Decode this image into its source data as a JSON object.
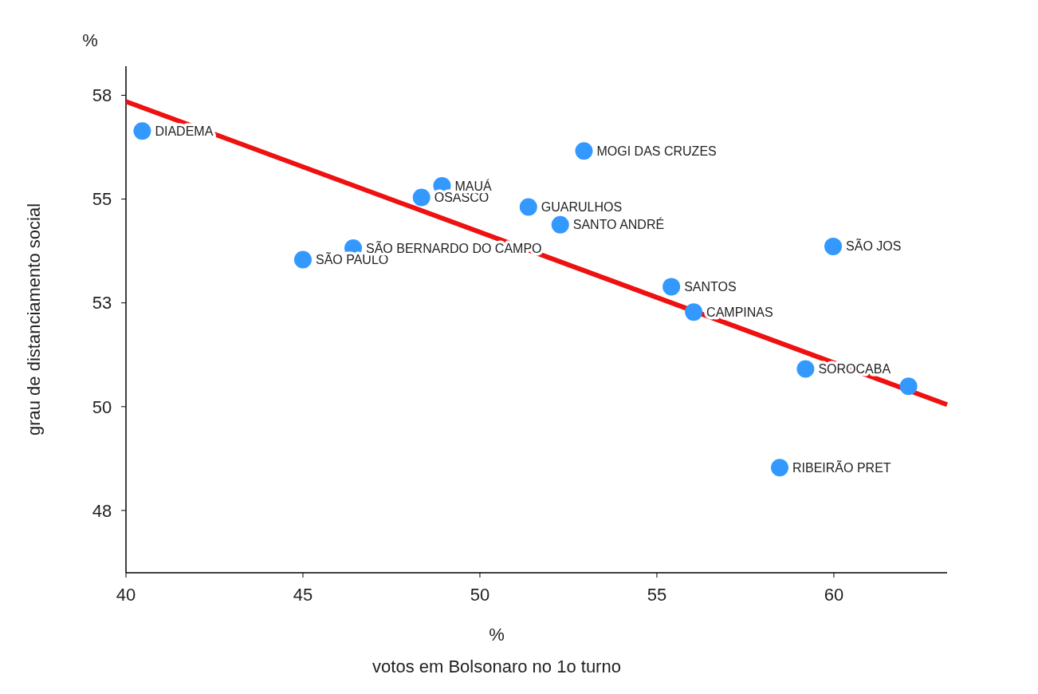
{
  "chart_data": {
    "type": "scatter",
    "xlabel": "votos em Bolsonaro no 1o turno",
    "ylabel": "grau de distanciamento social",
    "xlim": [
      40,
      63.2
    ],
    "xticks": [
      40,
      45,
      50,
      55,
      60
    ],
    "ylim": [
      46,
      58.2
    ],
    "yticks": [
      {
        "value": 47.5,
        "label": "48"
      },
      {
        "value": 50,
        "label": "50"
      },
      {
        "value": 52.5,
        "label": "53"
      },
      {
        "value": 55,
        "label": "55"
      },
      {
        "value": 57.5,
        "label": "58"
      }
    ],
    "grid": false,
    "marker": "circle",
    "series": [
      {
        "color": "#3399ff",
        "x": [
          40.46,
          45.0,
          46.42,
          48.35,
          48.93,
          51.37,
          52.27,
          52.94,
          55.41,
          56.04,
          59.98,
          58.47,
          59.2,
          62.11
        ],
        "values": [
          56.64,
          53.54,
          53.82,
          55.04,
          55.32,
          54.81,
          54.38,
          56.16,
          52.89,
          52.28,
          53.86,
          48.53,
          50.91,
          50.49
        ]
      },
      {
        "type": "line",
        "color": "#ee1111",
        "marker": "none",
        "x": [
          40,
          63.2
        ],
        "values": [
          57.35,
          50.05
        ]
      }
    ],
    "annotations": [
      "%",
      "%",
      {
        "text": "DIADEMA",
        "x": 40.46,
        "y": 56.64
      },
      {
        "text": "SÃO PAULO",
        "x": 45.0,
        "y": 53.54
      },
      {
        "text": "SÃO BERNARDO DO CAMPO",
        "x": 46.42,
        "y": 53.82
      },
      {
        "text": "OSASCO",
        "x": 48.35,
        "y": 55.04
      },
      {
        "text": "MAUÁ",
        "x": 48.93,
        "y": 55.32
      },
      {
        "text": "GUARULHOS",
        "x": 51.37,
        "y": 54.81
      },
      {
        "text": "SANTO ANDRÉ",
        "x": 52.27,
        "y": 54.38
      },
      {
        "text": "MOGI DAS CRUZES",
        "x": 52.94,
        "y": 56.16
      },
      {
        "text": "SANTOS",
        "x": 55.41,
        "y": 52.89
      },
      {
        "text": "CAMPINAS",
        "x": 56.04,
        "y": 52.28
      },
      {
        "text": "SÃO JOS",
        "x": 59.98,
        "y": 53.86
      },
      {
        "text": "RIBEIRÃO PRET",
        "x": 58.47,
        "y": 48.53
      },
      {
        "text": "SOROCABA",
        "x": 59.2,
        "y": 50.91
      }
    ]
  }
}
